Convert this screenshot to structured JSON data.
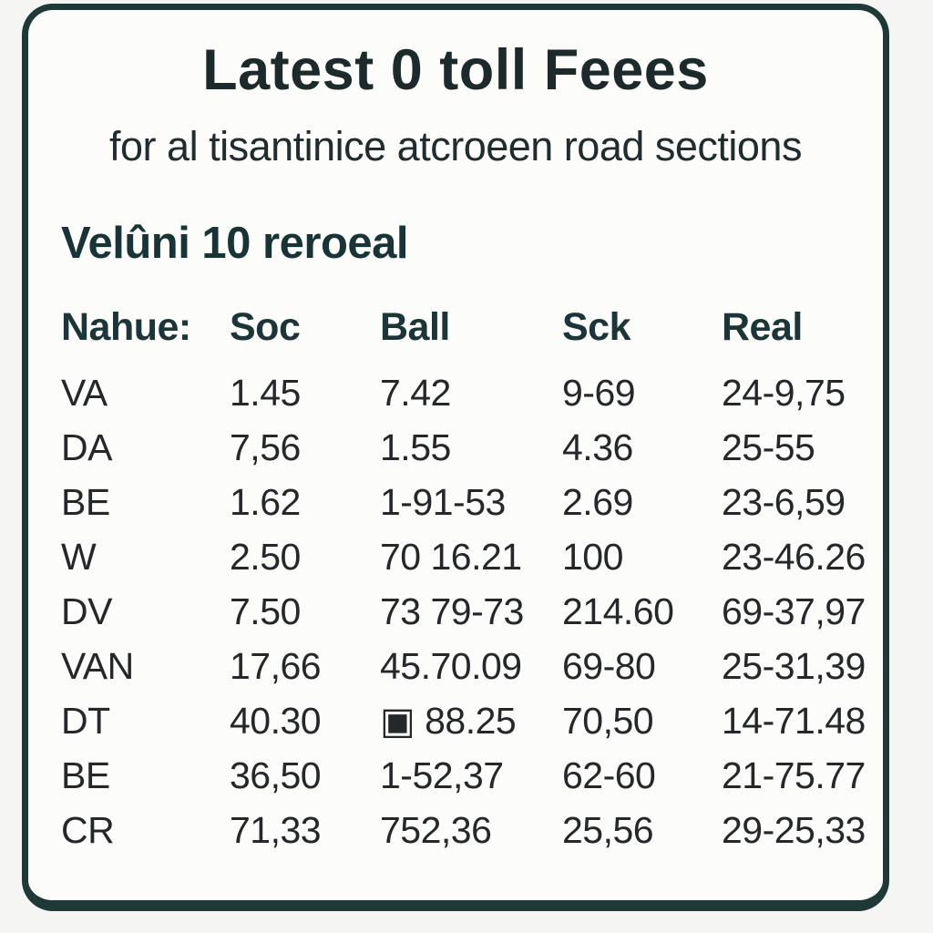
{
  "card": {
    "title": "Latest 0 toll Feees",
    "subtitle": "for al tisantinice atcroeen road sections",
    "section_heading": "Velûni 10 reroeal"
  },
  "table": {
    "columns": [
      "Nahue:",
      "Soc",
      "Ball",
      "Sck",
      "Real"
    ],
    "rows": [
      [
        "VA",
        "1.45",
        "7.42",
        "9-69",
        "24-9,75"
      ],
      [
        "DA",
        "7,56",
        "1.55",
        "4.36",
        "25-55"
      ],
      [
        "BE",
        "1.62",
        "1-91-53",
        "2.69",
        "23-6,59"
      ],
      [
        "W",
        "2.50",
        "70 16.21",
        "100",
        "23-46.26"
      ],
      [
        "DV",
        "7.50",
        "73 79-73",
        "214.60",
        "69-37,97"
      ],
      [
        "VAN",
        "17,66",
        "45.70.09",
        "69-80",
        "25-31,39"
      ],
      [
        "DT",
        "40.30",
        "▣ 88.25",
        "70,50",
        "14-71.48"
      ],
      [
        "BE",
        "36,50",
        "1-52,37",
        "62-60",
        "21-75.77"
      ],
      [
        "CR",
        "71,33",
        "752,36",
        "25,56",
        "29-25,33"
      ]
    ]
  },
  "colors": {
    "card_border": "#1e3936",
    "title_text": "#1d2a2b",
    "subtitle_text": "#202c2d",
    "heading_text": "#183436",
    "header_text": "#1c3538",
    "body_text": "#25282a",
    "card_background": "#fcfcfa",
    "page_background": "#f5f5f3"
  }
}
